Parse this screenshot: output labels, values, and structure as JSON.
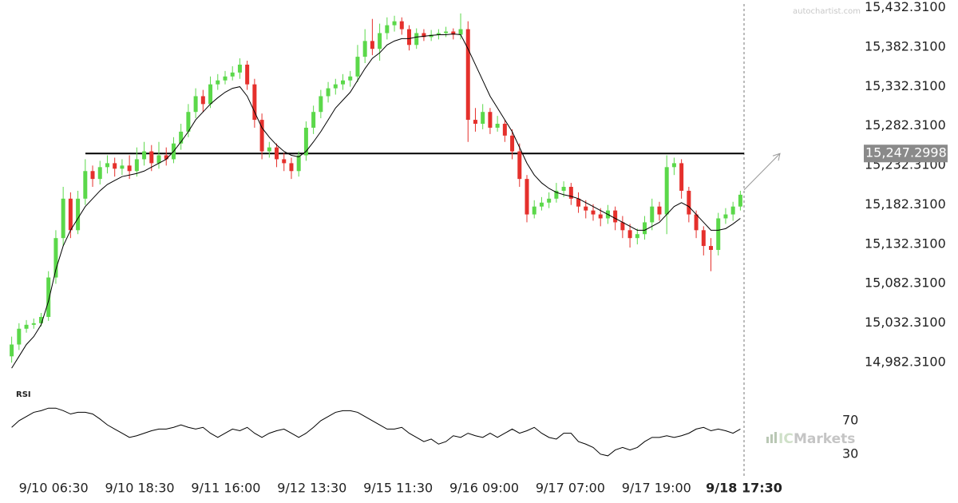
{
  "chart_data": [
    {
      "type": "candlestick",
      "up_color": "#5bd84a",
      "down_color": "#e5302c",
      "xlim": [
        -0.5,
        99.5
      ],
      "xticks": [
        {
          "value": 5.7,
          "label": "9/10 06:30"
        },
        {
          "value": 17.4,
          "label": "9/10 18:30"
        },
        {
          "value": 29.1,
          "label": "9/11 16:00"
        },
        {
          "value": 40.8,
          "label": "9/12 13:30"
        },
        {
          "value": 52.5,
          "label": "9/15 11:30"
        },
        {
          "value": 64.2,
          "label": "9/16 09:00"
        },
        {
          "value": 75.9,
          "label": "9/17 07:00"
        },
        {
          "value": 87.6,
          "label": "9/17 19:00"
        },
        {
          "value": 99.5,
          "label": "9/18 17:30"
        }
      ],
      "ylim": [
        14966,
        15442
      ],
      "yticks": [
        {
          "value": 15432.31,
          "label": "15,432.3100"
        },
        {
          "value": 15382.31,
          "label": "15,382.3100"
        },
        {
          "value": 15332.31,
          "label": "15,332.3100"
        },
        {
          "value": 15282.31,
          "label": "15,282.3100"
        },
        {
          "value": 15232.31,
          "label": "15,232.3100"
        },
        {
          "value": 15182.31,
          "label": "15,182.3100"
        },
        {
          "value": 15132.31,
          "label": "15,132.3100"
        },
        {
          "value": 15082.31,
          "label": "15,082.3100"
        },
        {
          "value": 15032.31,
          "label": "15,032.3100"
        },
        {
          "value": 14982.31,
          "label": "14,982.3100"
        }
      ],
      "open": [
        14990,
        15005,
        15025,
        15030,
        15032,
        15040,
        15090,
        15140,
        15190,
        15150,
        15190,
        15225,
        15215,
        15230,
        15235,
        15228,
        15232,
        15225,
        15240,
        15250,
        15235,
        15245,
        15240,
        15260,
        15275,
        15300,
        15320,
        15310,
        15335,
        15340,
        15345,
        15350,
        15360,
        15335,
        15290,
        15250,
        15255,
        15240,
        15235,
        15225,
        15245,
        15280,
        15300,
        15320,
        15330,
        15335,
        15340,
        15345,
        15370,
        15390,
        15380,
        15400,
        15410,
        15415,
        15405,
        15385,
        15400,
        15395,
        15398,
        15400,
        15402,
        15398,
        15405,
        15290,
        15285,
        15300,
        15280,
        15285,
        15270,
        15250,
        15215,
        15170,
        15180,
        15185,
        15190,
        15200,
        15205,
        15190,
        15180,
        15175,
        15170,
        15165,
        15175,
        15160,
        15150,
        15140,
        15145,
        15160,
        15180,
        15170,
        15230,
        15235,
        15200,
        15170,
        15150,
        15130,
        15125,
        15165,
        15170,
        15180
      ],
      "high": [
        15015,
        15032,
        15036,
        15038,
        15045,
        15098,
        15150,
        15205,
        15198,
        15200,
        15240,
        15232,
        15238,
        15245,
        15242,
        15240,
        15245,
        15255,
        15262,
        15258,
        15262,
        15255,
        15268,
        15285,
        15310,
        15330,
        15328,
        15345,
        15348,
        15352,
        15358,
        15368,
        15365,
        15342,
        15298,
        15262,
        15260,
        15248,
        15242,
        15250,
        15288,
        15308,
        15328,
        15338,
        15342,
        15348,
        15352,
        15385,
        15405,
        15418,
        15412,
        15420,
        15422,
        15420,
        15410,
        15406,
        15405,
        15404,
        15405,
        15408,
        15406,
        15425,
        15415,
        15305,
        15310,
        15305,
        15295,
        15290,
        15278,
        15260,
        15220,
        15188,
        15192,
        15198,
        15210,
        15212,
        15210,
        15198,
        15188,
        15183,
        15178,
        15182,
        15180,
        15168,
        15158,
        15152,
        15168,
        15190,
        15186,
        15245,
        15242,
        15240,
        15205,
        15175,
        15155,
        15140,
        15172,
        15178,
        15186,
        15200
      ],
      "low": [
        14982,
        14998,
        15020,
        15025,
        15028,
        15035,
        15082,
        15130,
        15140,
        15145,
        15182,
        15205,
        15208,
        15222,
        15218,
        15220,
        15215,
        15218,
        15232,
        15225,
        15228,
        15232,
        15235,
        15252,
        15268,
        15292,
        15300,
        15305,
        15328,
        15335,
        15340,
        15342,
        15328,
        15280,
        15240,
        15242,
        15230,
        15225,
        15215,
        15218,
        15238,
        15272,
        15292,
        15312,
        15322,
        15328,
        15332,
        15338,
        15362,
        15372,
        15365,
        15392,
        15402,
        15398,
        15378,
        15380,
        15390,
        15390,
        15392,
        15395,
        15392,
        15392,
        15262,
        15275,
        15278,
        15272,
        15275,
        15262,
        15240,
        15205,
        15160,
        15165,
        15175,
        15178,
        15185,
        15192,
        15182,
        15172,
        15165,
        15162,
        15155,
        15158,
        15150,
        15140,
        15128,
        15132,
        15138,
        15150,
        15162,
        15145,
        15220,
        15190,
        15160,
        15140,
        15118,
        15098,
        15118,
        15158,
        15162,
        15175
      ],
      "close": [
        15005,
        15025,
        15030,
        15032,
        15040,
        15090,
        15140,
        15190,
        15150,
        15190,
        15225,
        15215,
        15230,
        15235,
        15228,
        15232,
        15225,
        15240,
        15250,
        15235,
        15245,
        15240,
        15260,
        15275,
        15300,
        15320,
        15310,
        15335,
        15340,
        15345,
        15350,
        15360,
        15335,
        15290,
        15250,
        15255,
        15240,
        15235,
        15225,
        15245,
        15280,
        15300,
        15320,
        15330,
        15335,
        15340,
        15345,
        15370,
        15390,
        15380,
        15400,
        15410,
        15415,
        15405,
        15385,
        15400,
        15395,
        15398,
        15400,
        15402,
        15398,
        15405,
        15290,
        15285,
        15300,
        15280,
        15285,
        15270,
        15250,
        15215,
        15170,
        15180,
        15185,
        15190,
        15200,
        15205,
        15190,
        15180,
        15175,
        15170,
        15165,
        15175,
        15160,
        15150,
        15140,
        15145,
        15160,
        15180,
        15170,
        15230,
        15235,
        15200,
        15170,
        15150,
        15130,
        15125,
        15165,
        15170,
        15180,
        15195
      ],
      "ma": {
        "color": "#000000",
        "values": [
          14975,
          14990,
          15005,
          15015,
          15030,
          15060,
          15100,
          15130,
          15150,
          15165,
          15180,
          15190,
          15200,
          15208,
          15213,
          15218,
          15220,
          15222,
          15225,
          15230,
          15235,
          15240,
          15250,
          15262,
          15275,
          15290,
          15300,
          15310,
          15318,
          15325,
          15330,
          15332,
          15320,
          15300,
          15280,
          15268,
          15258,
          15250,
          15245,
          15243,
          15250,
          15262,
          15275,
          15290,
          15305,
          15315,
          15325,
          15340,
          15355,
          15368,
          15375,
          15385,
          15390,
          15393,
          15393,
          15395,
          15396,
          15397,
          15398,
          15398,
          15399,
          15398,
          15380,
          15360,
          15340,
          15320,
          15305,
          15290,
          15275,
          15255,
          15235,
          15220,
          15210,
          15203,
          15198,
          15195,
          15193,
          15190,
          15185,
          15180,
          15175,
          15170,
          15165,
          15160,
          15155,
          15150,
          15150,
          15155,
          15160,
          15170,
          15180,
          15185,
          15180,
          15170,
          15160,
          15150,
          15150,
          15152,
          15158,
          15165
        ]
      },
      "level": {
        "value": 15247.2998,
        "label": "15,247.2998",
        "color": "#000000"
      }
    },
    {
      "type": "line",
      "title": "RSI",
      "color": "#000000",
      "ylim": [
        5,
        110
      ],
      "yticks": [
        70,
        30
      ],
      "values": [
        62,
        70,
        75,
        80,
        82,
        85,
        85,
        82,
        78,
        80,
        80,
        78,
        72,
        65,
        60,
        55,
        50,
        52,
        55,
        58,
        60,
        60,
        62,
        65,
        62,
        60,
        62,
        55,
        50,
        55,
        60,
        58,
        62,
        55,
        50,
        55,
        58,
        60,
        55,
        50,
        55,
        62,
        70,
        75,
        80,
        82,
        82,
        80,
        75,
        70,
        65,
        60,
        60,
        62,
        55,
        50,
        45,
        48,
        42,
        45,
        52,
        50,
        55,
        52,
        50,
        55,
        50,
        55,
        60,
        55,
        58,
        62,
        55,
        50,
        48,
        55,
        55,
        45,
        42,
        38,
        30,
        28,
        35,
        38,
        35,
        38,
        45,
        50,
        50,
        52,
        50,
        52,
        55,
        60,
        62,
        58,
        60,
        58,
        55,
        60
      ]
    }
  ],
  "watermarks": {
    "site": "autochartist.com",
    "brand_prefix": "IC",
    "brand_name": "Markets"
  }
}
